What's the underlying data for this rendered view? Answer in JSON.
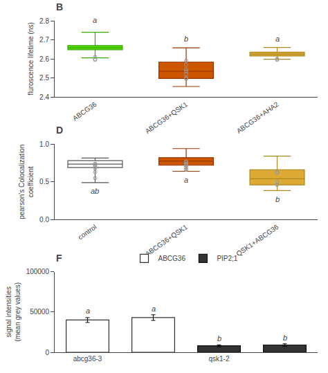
{
  "chart_data": [
    {
      "type": "box",
      "title": "B",
      "ylabel": "fluroscence lifetime (ns)",
      "categories": [
        "ABCG36",
        "ABCG36+QSK1",
        "ABCG36+AHA2"
      ],
      "medians": [
        2.658,
        2.535,
        2.625
      ],
      "q1": [
        2.648,
        2.497,
        2.615
      ],
      "q3": [
        2.67,
        2.583,
        2.635
      ],
      "whislo": [
        2.605,
        2.455,
        2.598
      ],
      "whishi": [
        2.74,
        2.658,
        2.66
      ],
      "fliers": [
        [
          2.61,
          2.6,
          2.595
        ],
        [
          2.59,
          2.57,
          2.545,
          2.535,
          2.52,
          2.5,
          2.495
        ],
        [
          2.6,
          2.595
        ]
      ],
      "colors": [
        "#55dd00",
        "#cc5500",
        "#ddaa33"
      ],
      "edge_colors": [
        "#33aa00",
        "#993300",
        "#aa8822"
      ],
      "ylim": [
        2.4,
        2.8
      ],
      "yticks": [
        2.4,
        2.5,
        2.6,
        2.7,
        2.8
      ],
      "grid": false,
      "annotations": [
        {
          "index": 0,
          "y": 2.775,
          "text": "a"
        },
        {
          "index": 1,
          "y": 2.678,
          "text": "b"
        },
        {
          "index": 2,
          "y": 2.675,
          "text": "a"
        }
      ]
    },
    {
      "type": "box",
      "title": "D",
      "ylabel": "pearson's Colocalization\ncoefficient",
      "categories": [
        "control",
        "ABCG36+QSK1",
        "QSK1+ABCG36"
      ],
      "medians": [
        0.735,
        0.775,
        0.54
      ],
      "q1": [
        0.69,
        0.72,
        0.46
      ],
      "q3": [
        0.78,
        0.82,
        0.66
      ],
      "whislo": [
        0.49,
        0.64,
        0.385
      ],
      "whishi": [
        0.815,
        0.94,
        0.84
      ],
      "fliers": [
        [
          0.74,
          0.73,
          0.72,
          0.7,
          0.68,
          0.63,
          0.55
        ],
        [
          0.77,
          0.76,
          0.74,
          0.73,
          0.72,
          0.7,
          0.67,
          0.66
        ],
        [
          0.63,
          0.62,
          0.5,
          0.46
        ]
      ],
      "colors": [
        "#ffffff",
        "#cc5500",
        "#ddaa33"
      ],
      "edge_colors": [
        "#555555",
        "#993300",
        "#aa8822"
      ],
      "ylim": [
        0.0,
        1.0
      ],
      "yticks": [
        {
          "value": 0.0,
          "label": "0.0"
        },
        {
          "value": 0.5,
          "label": "0.5"
        },
        {
          "value": 1.0,
          "label": "1.0"
        }
      ],
      "grid": false,
      "annotations": [
        {
          "index": 0,
          "y": 0.455,
          "text": "ab"
        },
        {
          "index": 1,
          "y": 0.595,
          "text": "a"
        },
        {
          "index": 2,
          "y": 0.345,
          "text": "b"
        }
      ]
    },
    {
      "type": "bar",
      "title": "F",
      "ylabel": "signal intensities\n(mean grey values)",
      "categories": [
        "abcg36-3",
        null,
        "qsk1-2",
        null
      ],
      "series": [
        {
          "name": "ABCG36",
          "color": "#ffffff",
          "edge_color": "#333333",
          "values": [
            40000,
            43000,
            null,
            null
          ],
          "errors": [
            3000,
            3500,
            null,
            null
          ]
        },
        {
          "name": "PIP2;1",
          "color": "#333333",
          "edge_color": "#111111",
          "values": [
            null,
            null,
            8000,
            9000
          ],
          "errors": [
            null,
            null,
            1200,
            1500
          ]
        }
      ],
      "ylim": [
        0,
        100000
      ],
      "yticks": [
        0,
        50000,
        100000
      ],
      "grid": false,
      "legend": "top",
      "annotations": [
        {
          "index": 0,
          "y": 44500,
          "text": "a"
        },
        {
          "index": 1,
          "y": 47500,
          "text": "a"
        },
        {
          "index": 2,
          "y": 10200,
          "text": "b"
        },
        {
          "index": 3,
          "y": 11500,
          "text": "b"
        }
      ]
    }
  ]
}
